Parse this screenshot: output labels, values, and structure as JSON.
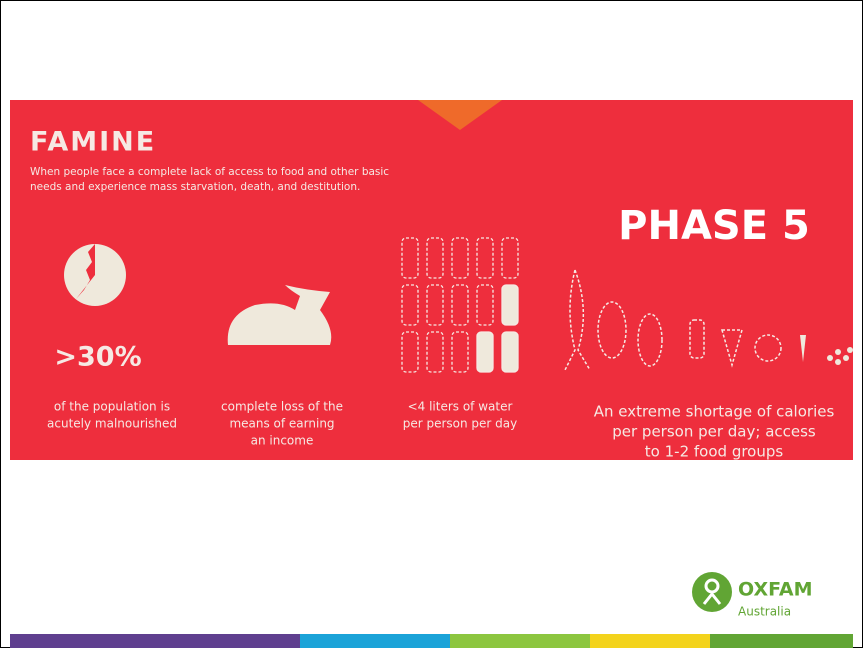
{
  "header": {
    "title": "FAMINE",
    "description": [
      "When people face a complete lack of access to food and other basic",
      "needs and experience mass starvation, death, and destitution."
    ]
  },
  "phase": "PHASE 5",
  "stats": [
    {
      "figure": ">30%",
      "caption": [
        "of the population is",
        "acutely malnourished"
      ]
    },
    {
      "caption": [
        "complete loss of the",
        "means of earning",
        "an income"
      ]
    },
    {
      "caption": [
        "<4 liters of water",
        "per person per day"
      ]
    },
    {
      "caption": [
        "An extreme shortage of calories",
        "per person per day; access",
        "to 1-2 food groups"
      ]
    }
  ],
  "logo": {
    "name": "OXFAM",
    "region": "Australia"
  }
}
